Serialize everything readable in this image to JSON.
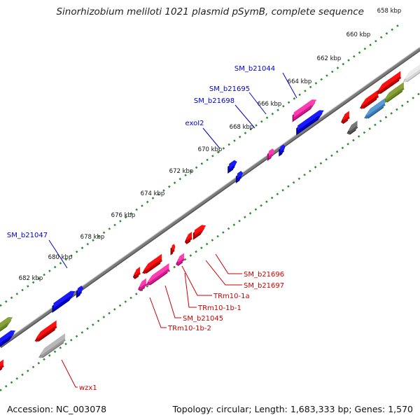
{
  "title": "Sinorhizobium meliloti 1021 plasmid pSymB, complete sequence",
  "footer": {
    "accession": "Accession: NC_003078",
    "summary": "Topology: circular; Length: 1,683,333 bp; Genes: 1,570"
  },
  "colors": {
    "backbone": "#7d7d7d",
    "tick_dots": "#2e8b2e",
    "label_forward": "#0000cc",
    "label_reverse": "#cc0000"
  },
  "ticks": [
    "658 kbp",
    "660 kbp",
    "662 kbp",
    "664 kbp",
    "666 kbp",
    "668 kbp",
    "670 kbp",
    "672 kbp",
    "674 kbp",
    "676 kbp",
    "678 kbp",
    "680 kbp",
    "682 kbp"
  ],
  "gene_labels": {
    "forward": [
      "SM_b21044",
      "SM_b21695",
      "SM_b21698",
      "exoI2",
      "SM_b21047"
    ],
    "reverse": [
      "SM_b21696",
      "SM_b21697",
      "TRm10-1a",
      "TRm10-1b-1",
      "SM_b21045",
      "TRm10-1b-2",
      "wzx1"
    ]
  },
  "features": [
    {
      "strand": "forward",
      "color": "pink"
    },
    {
      "strand": "forward",
      "color": "blue"
    },
    {
      "strand": "forward",
      "color": "blue"
    },
    {
      "strand": "forward",
      "color": "pink"
    },
    {
      "strand": "forward",
      "color": "blue"
    },
    {
      "strand": "forward",
      "color": "blue"
    },
    {
      "strand": "forward",
      "color": "blue"
    },
    {
      "strand": "forward",
      "color": "blue"
    },
    {
      "strand": "forward",
      "color": "olive"
    },
    {
      "strand": "forward",
      "color": "blue"
    },
    {
      "strand": "reverse",
      "color": "red"
    },
    {
      "strand": "reverse",
      "color": "red"
    },
    {
      "strand": "reverse",
      "color": "red"
    },
    {
      "strand": "reverse",
      "color": "pink"
    },
    {
      "strand": "reverse",
      "color": "red"
    },
    {
      "strand": "reverse",
      "color": "pink"
    },
    {
      "strand": "reverse",
      "color": "red"
    },
    {
      "strand": "reverse",
      "color": "pink"
    },
    {
      "strand": "reverse",
      "color": "red"
    },
    {
      "strand": "reverse",
      "color": "grey"
    },
    {
      "strand": "reverse",
      "color": "red"
    },
    {
      "strand": "reverse",
      "color": "red"
    },
    {
      "strand": "reverse",
      "color": "olive"
    },
    {
      "strand": "reverse",
      "color": "steelblue"
    },
    {
      "strand": "reverse",
      "color": "red"
    },
    {
      "strand": "reverse",
      "color": "lightgrey"
    },
    {
      "strand": "reverse",
      "color": "red"
    },
    {
      "strand": "reverse",
      "color": "darkgrey"
    }
  ]
}
